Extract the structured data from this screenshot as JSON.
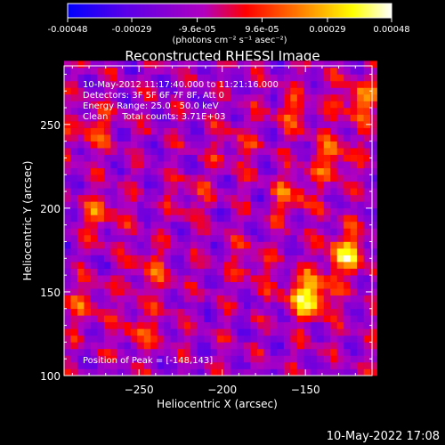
{
  "colorbar": {
    "tick_labels": [
      "-0.00048",
      "-0.00029",
      "-9.6e-05",
      "9.6e-05",
      "0.00029",
      "0.00048"
    ],
    "tick_values": [
      -0.00048,
      -0.00029,
      -9.6e-05,
      9.6e-05,
      0.00029,
      0.00048
    ],
    "range": [
      -0.00048,
      0.00048
    ],
    "units_label": "(photons cm⁻² s⁻¹ asec⁻²)",
    "colors": [
      "#0000ff",
      "#5a00e8",
      "#b000c0",
      "#ff0000",
      "#ff8000",
      "#ffff00",
      "#ffffff"
    ]
  },
  "chart_data": {
    "type": "heatmap",
    "title": "Reconstructed RHESSI Image",
    "xlabel": "Heliocentric X (arcsec)",
    "ylabel": "Heliocentric Y (arcsec)",
    "xlim": [
      -295,
      -110
    ],
    "ylim": [
      100,
      285
    ],
    "xticks": [
      -250,
      -200,
      -150
    ],
    "yticks": [
      100,
      150,
      200,
      250
    ],
    "xtick_labels": [
      "−250",
      "−200",
      "−150"
    ],
    "ytick_labels": [
      "100",
      "150",
      "200",
      "250"
    ],
    "annotations": [
      "10-May-2012 11:17:40.000 to 11:21:16.000",
      "Detectors: 3F 5F 6F 7F 8F, Att 0",
      "Energy Range: 25.0 - 50.0 keV",
      "Clean     Total counts: 3.71E+03"
    ],
    "peak_label": "Position of Peak = [-148,143]",
    "peak": [
      -148,
      143
    ],
    "bright_regions": [
      {
        "x": -150,
        "y": 145,
        "intensity": 0.00048
      },
      {
        "x": -128,
        "y": 170,
        "intensity": 0.0004
      },
      {
        "x": -120,
        "y": 262,
        "intensity": 0.0003
      },
      {
        "x": -135,
        "y": 228,
        "intensity": 0.00025
      },
      {
        "x": -160,
        "y": 205,
        "intensity": 0.00022
      },
      {
        "x": -280,
        "y": 245,
        "intensity": 0.0002
      },
      {
        "x": -275,
        "y": 195,
        "intensity": 0.00022
      },
      {
        "x": -245,
        "y": 160,
        "intensity": 0.0002
      },
      {
        "x": -285,
        "y": 140,
        "intensity": 0.00018
      },
      {
        "x": -250,
        "y": 125,
        "intensity": 0.00018
      },
      {
        "x": -195,
        "y": 235,
        "intensity": 0.00015
      },
      {
        "x": -220,
        "y": 205,
        "intensity": 0.00014
      },
      {
        "x": -185,
        "y": 165,
        "intensity": 0.00016
      },
      {
        "x": -160,
        "y": 255,
        "intensity": 0.00018
      }
    ]
  },
  "footer": {
    "date": "10-May-2022 17:08"
  }
}
